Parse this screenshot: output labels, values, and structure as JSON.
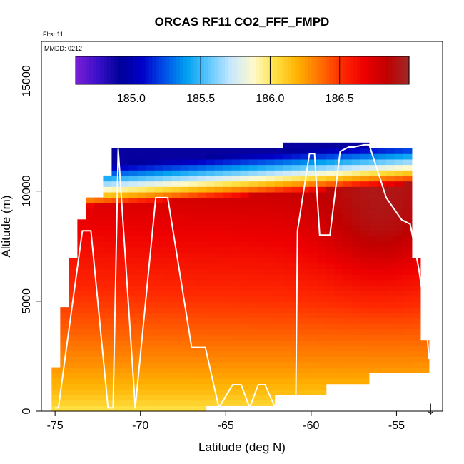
{
  "chart_data": {
    "type": "heatmap",
    "title": "ORCAS RF11 CO2_FFF_FMPD",
    "annotations": [
      "Flts: 11",
      "MMDD: 0212"
    ],
    "xlabel": "Latitude (deg N)",
    "ylabel": "Altitude (m)",
    "xlim": [
      -75.8,
      -52.3
    ],
    "ylim": [
      0,
      16800
    ],
    "x_ticks": [
      -75,
      -70,
      -65,
      -60,
      -55
    ],
    "y_ticks": [
      0,
      5000,
      10000,
      15000
    ],
    "colorbar": {
      "range": [
        184.6,
        187.0
      ],
      "ticks": [
        185.0,
        185.5,
        186.0,
        186.5
      ],
      "tick_labels": [
        "185.0",
        "185.5",
        "186.0",
        "186.5"
      ],
      "colors": [
        "#7a1fd6",
        "#3a10c8",
        "#000099",
        "#0000c8",
        "#0050e8",
        "#00a0f0",
        "#60c8ff",
        "#c8e8ff",
        "#fffacc",
        "#ffe040",
        "#ffb000",
        "#ff7000",
        "#ff2800",
        "#ee0000",
        "#c00000",
        "#a02828"
      ]
    },
    "field": {
      "lat_range": [
        -75.2,
        -53.1
      ],
      "alt_range": [
        0,
        12200
      ],
      "nx": 44,
      "ny": 49,
      "top_alt": 12000,
      "low_value": 186.0,
      "mid_value": 186.72,
      "peak_value": 186.95,
      "upper_low_value": 184.9
    },
    "flight_track": {
      "lat": [
        -75.0,
        -74.8,
        -74.4,
        -73.4,
        -72.9,
        -71.9,
        -71.6,
        -71.3,
        -70.3,
        -69.1,
        -68.4,
        -67.0,
        -66.2,
        -65.4,
        -64.6,
        -64.1,
        -63.6,
        -63.1,
        -62.7,
        -62.1,
        -61.8,
        -60.9,
        -60.8,
        -60.1,
        -59.8,
        -59.5,
        -58.9,
        -58.3,
        -57.8,
        -57.5,
        -56.9,
        -56.6,
        -55.6,
        -54.7,
        -54.2,
        -53.7,
        -53.3,
        -53.1,
        -52.9
      ],
      "alt": [
        150,
        150,
        2500,
        8200,
        8200,
        150,
        150,
        11900,
        150,
        9700,
        9700,
        2900,
        2900,
        150,
        1200,
        1200,
        150,
        1200,
        1200,
        150,
        150,
        150,
        8200,
        11700,
        11700,
        8000,
        8000,
        11800,
        12000,
        12000,
        12100,
        12100,
        9700,
        8700,
        8500,
        6500,
        4400,
        2400,
        2400
      ]
    },
    "marker": {
      "label": "↓",
      "lat": -53.0,
      "alt": 0
    }
  }
}
